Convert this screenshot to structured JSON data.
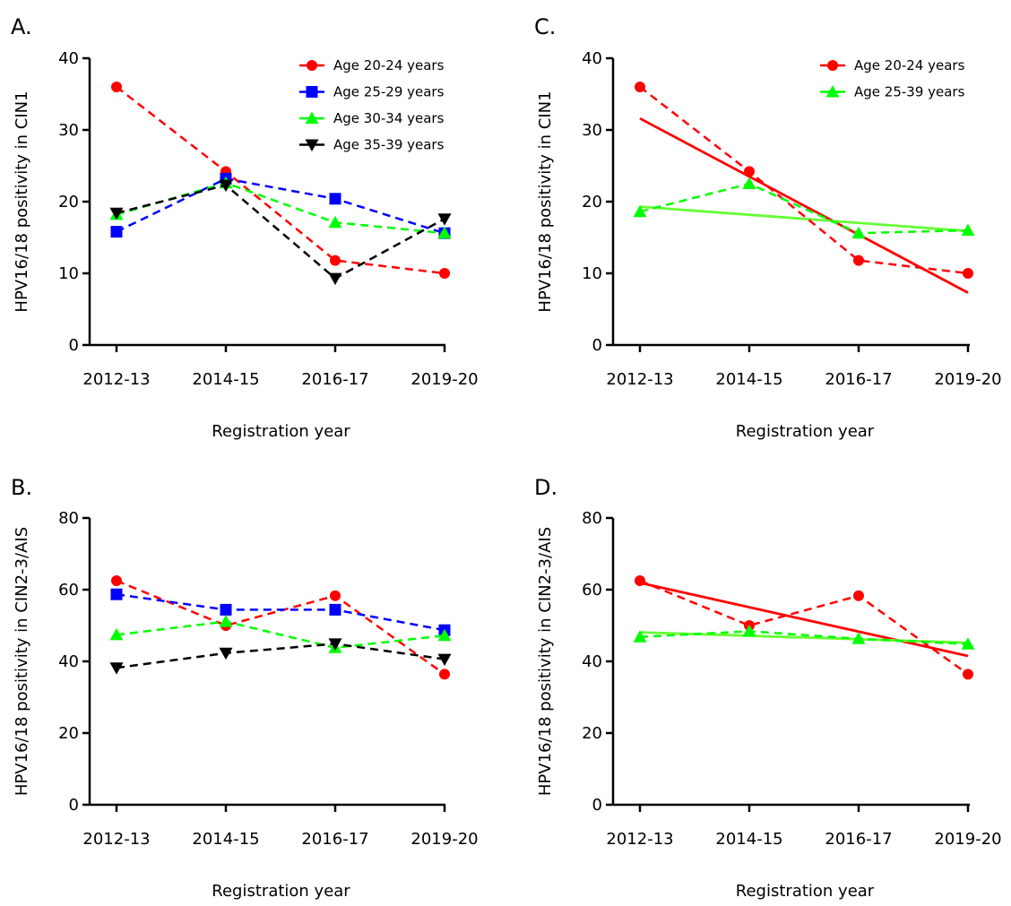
{
  "chart_data": [
    {
      "panel": "A.",
      "type": "line",
      "categories": [
        "2012-13",
        "2014-15",
        "2016-17",
        "2019-20"
      ],
      "xlabel": "Registration year",
      "ylabel": "HPV16/18 positivity in CIN1",
      "ylim": [
        0,
        40
      ],
      "yticks": [
        0,
        10,
        20,
        30,
        40
      ],
      "legend_position": "top-right",
      "series": [
        {
          "name": "Age 20-24 years",
          "color": "#ff0000",
          "marker": "circle",
          "dash": true,
          "values": [
            36,
            24.2,
            11.8,
            10
          ]
        },
        {
          "name": "Age 25-29 years",
          "color": "#0000ff",
          "marker": "square",
          "dash": true,
          "values": [
            15.8,
            23.2,
            20.4,
            15.6
          ]
        },
        {
          "name": "Age 30-34 years",
          "color": "#00ff00",
          "marker": "triangle-up",
          "dash": true,
          "values": [
            18.2,
            22.6,
            17.1,
            15.6
          ]
        },
        {
          "name": "Age 35-39 years",
          "color": "#000000",
          "marker": "triangle-down",
          "dash": true,
          "values": [
            18.4,
            22.3,
            9.3,
            17.6
          ]
        }
      ]
    },
    {
      "panel": "B.",
      "type": "line",
      "categories": [
        "2012-13",
        "2014-15",
        "2016-17",
        "2019-20"
      ],
      "xlabel": "Registration year",
      "ylabel": "HPV16/18 positivity in CIN2-3/AIS",
      "ylim": [
        0,
        80
      ],
      "yticks": [
        0,
        20,
        40,
        60,
        80
      ],
      "series": [
        {
          "name": "Age 20-24 years",
          "color": "#ff0000",
          "marker": "circle",
          "dash": true,
          "values": [
            62.5,
            50,
            58.3,
            36.4
          ]
        },
        {
          "name": "Age 25-29 years",
          "color": "#0000ff",
          "marker": "square",
          "dash": true,
          "values": [
            58.7,
            54.4,
            54.4,
            48.7
          ]
        },
        {
          "name": "Age 30-34 years",
          "color": "#00ff00",
          "marker": "triangle-up",
          "dash": true,
          "values": [
            47.4,
            51.1,
            43.8,
            47.2
          ]
        },
        {
          "name": "Age 35-39 years",
          "color": "#000000",
          "marker": "triangle-down",
          "dash": true,
          "values": [
            38.2,
            42.3,
            44.9,
            40.6
          ]
        }
      ]
    },
    {
      "panel": "C.",
      "type": "line",
      "categories": [
        "2012-13",
        "2014-15",
        "2016-17",
        "2019-20"
      ],
      "xlabel": "Registration year",
      "ylabel": "HPV16/18 positivity in CIN1",
      "ylim": [
        0,
        40
      ],
      "yticks": [
        0,
        10,
        20,
        30,
        40
      ],
      "legend_position": "top-right",
      "series": [
        {
          "name": "Age 20-24 years",
          "color": "#ff0000",
          "marker": "circle",
          "dash": true,
          "values": [
            36,
            24.2,
            11.8,
            10
          ]
        },
        {
          "name": "Age 25-39 years",
          "color": "#00ff00",
          "marker": "triangle-up",
          "dash": true,
          "values": [
            18.6,
            22.5,
            15.6,
            16
          ]
        }
      ],
      "trend_lines": [
        {
          "color": "#ff0000",
          "values": [
            31.6,
            7.3
          ]
        },
        {
          "color": "#66ff33",
          "values": [
            19.3,
            15.9
          ]
        }
      ]
    },
    {
      "panel": "D.",
      "type": "line",
      "categories": [
        "2012-13",
        "2014-15",
        "2016-17",
        "2019-20"
      ],
      "xlabel": "Registration year",
      "ylabel": "HPV16/18 positivity in CIN2-3/AIS",
      "ylim": [
        0,
        80
      ],
      "yticks": [
        0,
        20,
        40,
        60,
        80
      ],
      "series": [
        {
          "color": "#ff0000",
          "marker": "circle",
          "dash": true,
          "values": [
            62.5,
            50,
            58.3,
            36.4
          ]
        },
        {
          "color": "#00ff00",
          "marker": "triangle-up",
          "dash": true,
          "values": [
            46.8,
            48.4,
            46.3,
            44.8
          ]
        }
      ],
      "trend_lines": [
        {
          "color": "#ff0000",
          "values": [
            61.9,
            41.5
          ]
        },
        {
          "color": "#66ff33",
          "values": [
            48.1,
            45.2
          ]
        }
      ]
    }
  ]
}
